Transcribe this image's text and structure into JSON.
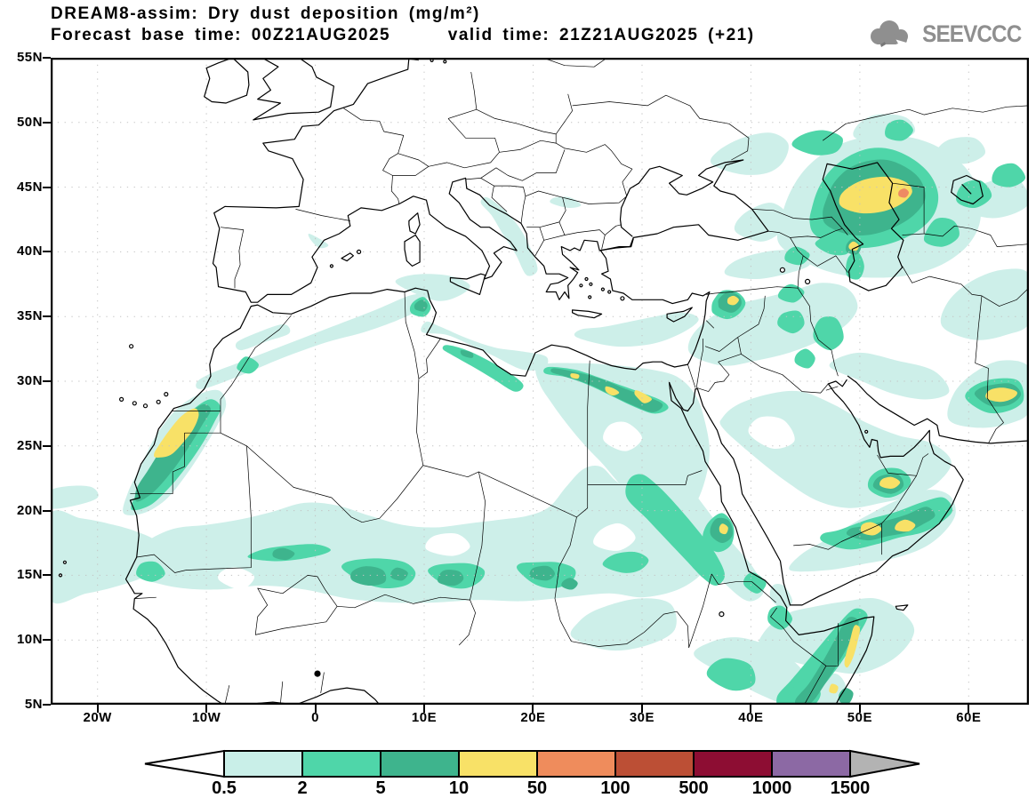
{
  "header": {
    "title_line1": "DREAM8-assim: Dry dust deposition (mg/m²)",
    "title_line2": "Forecast base time: 00Z21AUG2025      valid time: 21Z21AUG2025 (+21)",
    "logo_text": "SEEVCCC"
  },
  "axes": {
    "lat_labels": [
      "55N",
      "50N",
      "45N",
      "40N",
      "35N",
      "30N",
      "25N",
      "20N",
      "15N",
      "10N",
      "5N"
    ],
    "lon_labels": [
      "20W",
      "10W",
      "0",
      "10E",
      "20E",
      "30E",
      "40E",
      "50E",
      "60E"
    ]
  },
  "legend": {
    "tick_labels": [
      "0.5",
      "2",
      "5",
      "10",
      "50",
      "100",
      "500",
      "1000",
      "1500"
    ],
    "box_colors": [
      "#c9efe8",
      "#4fd6a9",
      "#3eb48d",
      "#f8e167",
      "#ef8c5c",
      "#bc4f35",
      "#8d0d33",
      "#8c69a4"
    ],
    "underflow_color": "#ffffff",
    "overflow_color": "#b3b3b3"
  },
  "map_palette": {
    "cyan": "#cdefe9",
    "green": "#4fd6a9",
    "dark_green": "#3eb48d",
    "yellow": "#f8e167",
    "orange": "#ee8a63",
    "white": "#ffffff"
  }
}
